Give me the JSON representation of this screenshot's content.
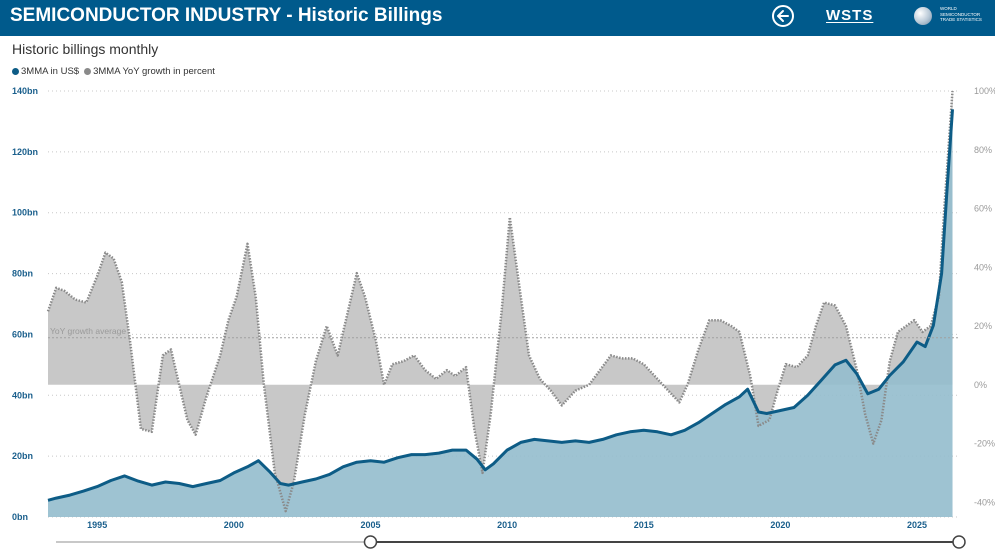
{
  "header": {
    "title": "SEMICONDUCTOR INDUSTRY - Historic Billings",
    "back_icon": "arrow-left-circle-icon",
    "logo_text": "WSTS",
    "logo_subtext": "WORLD SEMICONDUCTOR TRADE STATISTICS",
    "background_color": "#005a8c"
  },
  "page": {
    "subtitle": "Historic billings monthly"
  },
  "chart_data": {
    "type": "area",
    "legend": [
      {
        "label": "3MMA in US$",
        "color": "#0d5c86"
      },
      {
        "label": "3MMA YoY growth in percent",
        "color": "#8a8a8a"
      }
    ],
    "legend_position": "top-left",
    "grid": true,
    "y_left": {
      "ticks": [
        "0bn",
        "20bn",
        "40bn",
        "60bn",
        "80bn",
        "100bn",
        "120bn",
        "140bn"
      ],
      "range": [
        0,
        140
      ],
      "unit": "bn US$"
    },
    "y_right": {
      "ticks": [
        "-40%",
        "-20%",
        "0%",
        "20%",
        "40%",
        "60%",
        "80%",
        "100%"
      ],
      "range": [
        -45,
        100
      ],
      "unit": "%"
    },
    "x": {
      "ticks": [
        "1995",
        "2000",
        "2005",
        "2010",
        "2015",
        "2020",
        "2025"
      ],
      "range": [
        1993.2,
        2026.5
      ]
    },
    "annotations": [
      {
        "text": "YoY growth average",
        "value": 16
      }
    ],
    "series": [
      {
        "name": "3MMA in US$",
        "color": "#0d5c86",
        "fill": "#94bccd",
        "points": [
          [
            1993.2,
            5.5
          ],
          [
            1993.5,
            6.2
          ],
          [
            1994.0,
            7.2
          ],
          [
            1994.5,
            8.5
          ],
          [
            1995.0,
            10.0
          ],
          [
            1995.5,
            12.0
          ],
          [
            1996.0,
            13.5
          ],
          [
            1996.5,
            11.8
          ],
          [
            1997.0,
            10.5
          ],
          [
            1997.5,
            11.5
          ],
          [
            1998.0,
            11.0
          ],
          [
            1998.5,
            10.0
          ],
          [
            1999.0,
            11.0
          ],
          [
            1999.5,
            12.0
          ],
          [
            2000.0,
            14.5
          ],
          [
            2000.5,
            16.5
          ],
          [
            2000.9,
            18.5
          ],
          [
            2001.3,
            15.0
          ],
          [
            2001.7,
            11.0
          ],
          [
            2002.0,
            10.5
          ],
          [
            2002.5,
            11.5
          ],
          [
            2003.0,
            12.5
          ],
          [
            2003.5,
            14.0
          ],
          [
            2004.0,
            16.5
          ],
          [
            2004.5,
            18.0
          ],
          [
            2005.0,
            18.5
          ],
          [
            2005.5,
            18.0
          ],
          [
            2006.0,
            19.5
          ],
          [
            2006.5,
            20.5
          ],
          [
            2007.0,
            20.5
          ],
          [
            2007.5,
            21.0
          ],
          [
            2008.0,
            22.0
          ],
          [
            2008.5,
            22.0
          ],
          [
            2008.9,
            19.0
          ],
          [
            2009.2,
            15.5
          ],
          [
            2009.5,
            17.5
          ],
          [
            2010.0,
            22.0
          ],
          [
            2010.5,
            24.5
          ],
          [
            2011.0,
            25.5
          ],
          [
            2011.5,
            25.0
          ],
          [
            2012.0,
            24.5
          ],
          [
            2012.5,
            25.0
          ],
          [
            2013.0,
            24.5
          ],
          [
            2013.5,
            25.5
          ],
          [
            2014.0,
            27.0
          ],
          [
            2014.5,
            28.0
          ],
          [
            2015.0,
            28.5
          ],
          [
            2015.5,
            28.0
          ],
          [
            2016.0,
            27.0
          ],
          [
            2016.5,
            28.5
          ],
          [
            2017.0,
            31.0
          ],
          [
            2017.5,
            34.0
          ],
          [
            2018.0,
            37.0
          ],
          [
            2018.5,
            39.5
          ],
          [
            2018.8,
            42.0
          ],
          [
            2019.2,
            34.5
          ],
          [
            2019.5,
            34.0
          ],
          [
            2020.0,
            35.0
          ],
          [
            2020.5,
            36.0
          ],
          [
            2021.0,
            40.0
          ],
          [
            2021.5,
            45.0
          ],
          [
            2022.0,
            50.0
          ],
          [
            2022.4,
            51.5
          ],
          [
            2022.8,
            47.0
          ],
          [
            2023.2,
            40.5
          ],
          [
            2023.6,
            42.0
          ],
          [
            2024.0,
            46.5
          ],
          [
            2024.5,
            51.0
          ],
          [
            2025.0,
            57.5
          ],
          [
            2025.3,
            56.0
          ],
          [
            2025.6,
            63.0
          ],
          [
            2025.9,
            80.0
          ],
          [
            2026.1,
            108.0
          ],
          [
            2026.3,
            134.0
          ]
        ]
      },
      {
        "name": "3MMA YoY growth in percent",
        "color": "#8a8a8a",
        "fill": "#c8c8c8",
        "points": [
          [
            1993.2,
            25.0
          ],
          [
            1993.5,
            33.0
          ],
          [
            1993.8,
            32.0
          ],
          [
            1994.2,
            29.0
          ],
          [
            1994.6,
            28.0
          ],
          [
            1995.0,
            37.0
          ],
          [
            1995.3,
            45.0
          ],
          [
            1995.6,
            43.0
          ],
          [
            1995.9,
            35.0
          ],
          [
            1996.2,
            15.0
          ],
          [
            1996.6,
            -15.0
          ],
          [
            1997.0,
            -16.0
          ],
          [
            1997.4,
            10.0
          ],
          [
            1997.7,
            12.0
          ],
          [
            1998.0,
            0.0
          ],
          [
            1998.3,
            -12.0
          ],
          [
            1998.6,
            -17.0
          ],
          [
            1999.0,
            -4.0
          ],
          [
            1999.5,
            10.0
          ],
          [
            1999.8,
            22.0
          ],
          [
            2000.1,
            30.0
          ],
          [
            2000.5,
            48.0
          ],
          [
            2000.8,
            30.0
          ],
          [
            2001.1,
            0.0
          ],
          [
            2001.5,
            -30.0
          ],
          [
            2001.9,
            -43.0
          ],
          [
            2002.2,
            -33.0
          ],
          [
            2002.6,
            -10.0
          ],
          [
            2003.0,
            8.0
          ],
          [
            2003.4,
            20.0
          ],
          [
            2003.8,
            10.0
          ],
          [
            2004.2,
            26.0
          ],
          [
            2004.5,
            38.0
          ],
          [
            2004.8,
            30.0
          ],
          [
            2005.2,
            15.0
          ],
          [
            2005.5,
            0.0
          ],
          [
            2005.8,
            7.0
          ],
          [
            2006.2,
            8.0
          ],
          [
            2006.6,
            10.0
          ],
          [
            2007.0,
            5.0
          ],
          [
            2007.4,
            2.0
          ],
          [
            2007.8,
            5.0
          ],
          [
            2008.1,
            3.0
          ],
          [
            2008.5,
            6.0
          ],
          [
            2008.8,
            -15.0
          ],
          [
            2009.1,
            -30.0
          ],
          [
            2009.4,
            -10.0
          ],
          [
            2009.8,
            25.0
          ],
          [
            2010.1,
            57.0
          ],
          [
            2010.5,
            30.0
          ],
          [
            2010.8,
            10.0
          ],
          [
            2011.2,
            2.0
          ],
          [
            2011.6,
            -2.0
          ],
          [
            2012.0,
            -7.0
          ],
          [
            2012.5,
            -2.0
          ],
          [
            2013.0,
            0.0
          ],
          [
            2013.4,
            5.0
          ],
          [
            2013.8,
            10.0
          ],
          [
            2014.2,
            9.0
          ],
          [
            2014.6,
            9.0
          ],
          [
            2015.0,
            7.0
          ],
          [
            2015.5,
            2.0
          ],
          [
            2015.9,
            -2.0
          ],
          [
            2016.3,
            -6.0
          ],
          [
            2016.6,
            0.0
          ],
          [
            2017.0,
            12.0
          ],
          [
            2017.4,
            22.0
          ],
          [
            2017.8,
            22.0
          ],
          [
            2018.2,
            20.0
          ],
          [
            2018.5,
            18.0
          ],
          [
            2018.9,
            3.0
          ],
          [
            2019.2,
            -14.0
          ],
          [
            2019.6,
            -12.0
          ],
          [
            2019.9,
            -2.0
          ],
          [
            2020.2,
            7.0
          ],
          [
            2020.6,
            6.0
          ],
          [
            2021.0,
            10.0
          ],
          [
            2021.3,
            20.0
          ],
          [
            2021.6,
            28.0
          ],
          [
            2022.0,
            27.0
          ],
          [
            2022.4,
            20.0
          ],
          [
            2022.8,
            5.0
          ],
          [
            2023.1,
            -10.0
          ],
          [
            2023.4,
            -20.0
          ],
          [
            2023.7,
            -12.0
          ],
          [
            2024.0,
            8.0
          ],
          [
            2024.3,
            18.0
          ],
          [
            2024.6,
            20.0
          ],
          [
            2024.9,
            22.0
          ],
          [
            2025.2,
            18.0
          ],
          [
            2025.5,
            20.0
          ],
          [
            2025.8,
            30.0
          ],
          [
            2026.0,
            60.0
          ],
          [
            2026.3,
            100.0
          ]
        ]
      }
    ]
  },
  "range_slider": {
    "start_year": 2005,
    "end_year": 2026.5
  }
}
